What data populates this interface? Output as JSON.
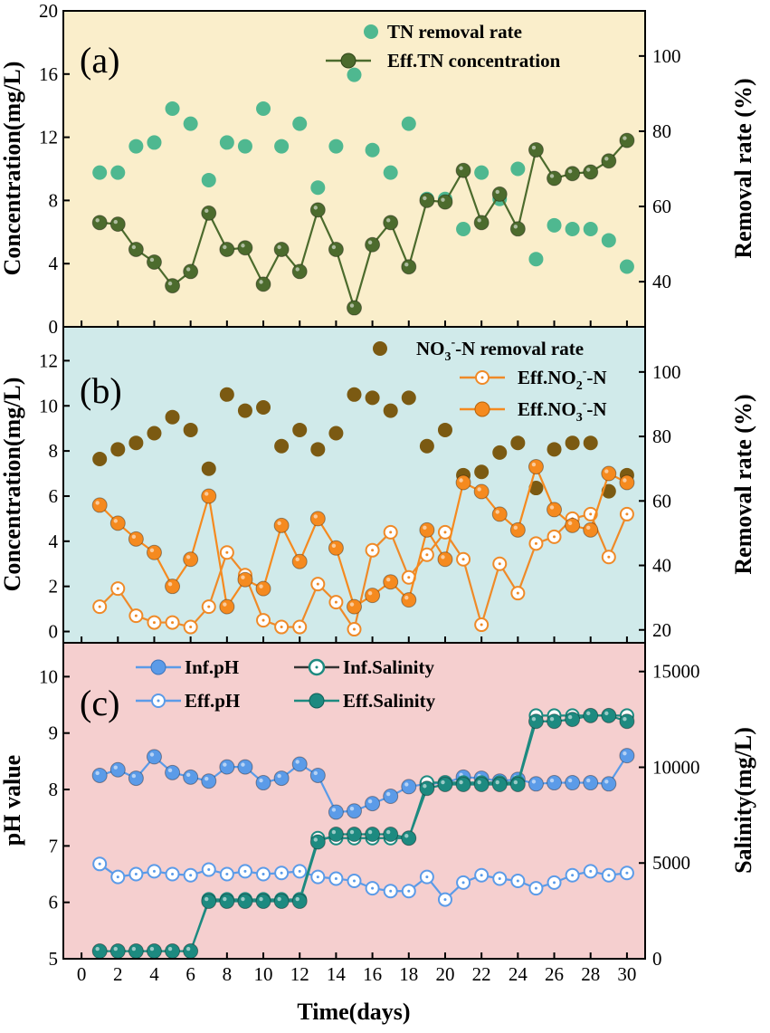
{
  "chart_data": [
    {
      "type": "line",
      "panel_label": "(a)",
      "bg": "#faeecb",
      "x": [
        1,
        2,
        3,
        4,
        5,
        6,
        7,
        8,
        9,
        10,
        11,
        12,
        13,
        14,
        15,
        16,
        17,
        18,
        19,
        20,
        21,
        22,
        23,
        24,
        25,
        26,
        27,
        28,
        29,
        30
      ],
      "xlim": [
        -1,
        31
      ],
      "xticks": [
        "0",
        "2",
        "4",
        "6",
        "8",
        "10",
        "12",
        "14",
        "16",
        "18",
        "20",
        "22",
        "24",
        "26",
        "28",
        "30"
      ],
      "left_axis": {
        "label": "Concentration(mg/L)",
        "ylim": [
          0,
          20
        ],
        "ticks": [
          "0",
          "4",
          "8",
          "12",
          "16",
          "20"
        ]
      },
      "right_axis": {
        "label": "Removal rate (%)",
        "ylim": [
          28,
          112
        ],
        "ticks": [
          "40",
          "60",
          "80",
          "100"
        ]
      },
      "series": [
        {
          "name": "TN removal rate",
          "axis": "right",
          "style": "scatter",
          "color": "#4fb890",
          "values": [
            69,
            69,
            76,
            77,
            86,
            82,
            67,
            77,
            76,
            86,
            76,
            82,
            65,
            76,
            95,
            75,
            69,
            82,
            62,
            62,
            54,
            69,
            62,
            70,
            46,
            55,
            54,
            54,
            51,
            44
          ]
        },
        {
          "name": "Eff.TN concentration",
          "axis": "left",
          "style": "line-marker",
          "color": "#4c6b2d",
          "values": [
            6.6,
            6.5,
            4.9,
            4.1,
            2.6,
            3.5,
            7.2,
            4.9,
            5.0,
            2.7,
            4.9,
            3.5,
            7.4,
            4.9,
            1.2,
            5.2,
            6.6,
            3.8,
            8.0,
            7.9,
            9.9,
            6.6,
            8.4,
            6.2,
            11.2,
            9.4,
            9.7,
            9.8,
            10.5,
            11.8
          ]
        }
      ]
    },
    {
      "type": "line",
      "panel_label": "(b)",
      "bg": "#d0eaea",
      "x": [
        1,
        2,
        3,
        4,
        5,
        6,
        7,
        8,
        9,
        10,
        11,
        12,
        13,
        14,
        15,
        16,
        17,
        18,
        19,
        20,
        21,
        22,
        23,
        24,
        25,
        26,
        27,
        28,
        29,
        30
      ],
      "xlim": [
        -1,
        31
      ],
      "left_axis": {
        "label": "Concentration(mg/L)",
        "ylim": [
          -0.5,
          13.5
        ],
        "ticks": [
          "0",
          "2",
          "4",
          "6",
          "8",
          "10",
          "12"
        ]
      },
      "right_axis": {
        "label": "Removal rate (%)",
        "ylim": [
          16,
          114
        ],
        "ticks": [
          "20",
          "40",
          "60",
          "80",
          "100"
        ]
      },
      "series": [
        {
          "name": "NO3--N removal rate",
          "axis": "right",
          "style": "scatter",
          "color": "#7b5a12",
          "values": [
            73,
            76,
            78,
            81,
            86,
            82,
            70,
            93,
            88,
            89,
            77,
            82,
            76,
            81,
            93,
            92,
            88,
            92,
            77,
            82,
            68,
            69,
            75,
            78,
            64,
            76,
            78,
            78,
            63,
            68
          ]
        },
        {
          "name": "Eff.NO2--N",
          "axis": "left",
          "style": "line-open",
          "color": "#ef8a28",
          "values": [
            1.1,
            1.9,
            0.7,
            0.4,
            0.4,
            0.2,
            1.1,
            3.5,
            2.5,
            0.5,
            0.2,
            0.2,
            2.1,
            1.3,
            0.1,
            3.6,
            4.4,
            2.4,
            3.4,
            4.4,
            3.2,
            0.3,
            3.0,
            1.7,
            3.9,
            4.2,
            5.0,
            5.2,
            3.3,
            5.2
          ]
        },
        {
          "name": "Eff.NO3--N",
          "axis": "left",
          "style": "line-marker",
          "color": "#f58a1f",
          "values": [
            5.6,
            4.8,
            4.1,
            3.5,
            2.0,
            3.2,
            6.0,
            1.1,
            2.3,
            1.9,
            4.7,
            3.1,
            5.0,
            3.7,
            1.1,
            1.6,
            2.2,
            1.4,
            4.5,
            3.2,
            6.6,
            6.2,
            5.2,
            4.5,
            7.3,
            5.4,
            4.7,
            4.5,
            7.0,
            6.6
          ]
        }
      ]
    },
    {
      "type": "line",
      "panel_label": "(c)",
      "bg": "#f5cfcf",
      "x": [
        1,
        2,
        3,
        4,
        5,
        6,
        7,
        8,
        9,
        10,
        11,
        12,
        13,
        14,
        15,
        16,
        17,
        18,
        19,
        20,
        21,
        22,
        23,
        24,
        25,
        26,
        27,
        28,
        29,
        30
      ],
      "xlim": [
        -1,
        31
      ],
      "xlabel": "Time(days)",
      "left_axis": {
        "label": "pH value",
        "ylim": [
          5,
          10.6
        ],
        "ticks": [
          "5",
          "6",
          "7",
          "8",
          "9",
          "10"
        ]
      },
      "right_axis": {
        "label": "Salinity(mg/L)",
        "ylim": [
          0,
          16500
        ],
        "ticks": [
          "0",
          "5000",
          "10000",
          "15000"
        ]
      },
      "series": [
        {
          "name": "Inf.pH",
          "axis": "left",
          "style": "line-marker",
          "color": "#5b9be8",
          "values": [
            8.25,
            8.35,
            8.2,
            8.58,
            8.3,
            8.22,
            8.15,
            8.4,
            8.4,
            8.12,
            8.2,
            8.45,
            8.25,
            7.6,
            7.62,
            7.75,
            7.88,
            8.05,
            8.1,
            8.12,
            8.22,
            8.2,
            8.15,
            8.18,
            8.1,
            8.12,
            8.12,
            8.12,
            8.1,
            8.6
          ]
        },
        {
          "name": "Eff.pH",
          "axis": "left",
          "style": "line-open",
          "color": "#5b9be8",
          "values": [
            6.68,
            6.45,
            6.5,
            6.55,
            6.5,
            6.48,
            6.58,
            6.5,
            6.55,
            6.5,
            6.52,
            6.55,
            6.45,
            6.42,
            6.38,
            6.25,
            6.2,
            6.2,
            6.45,
            6.05,
            6.35,
            6.48,
            6.42,
            6.38,
            6.25,
            6.35,
            6.48,
            6.55,
            6.48,
            6.52
          ]
        },
        {
          "name": "Inf.Salinity",
          "axis": "right",
          "style": "line-open",
          "color": "#1d8a80",
          "values": [
            400,
            400,
            400,
            400,
            400,
            400,
            3100,
            3100,
            3100,
            3100,
            3100,
            3100,
            6300,
            6300,
            6300,
            6300,
            6300,
            6300,
            9200,
            9200,
            9200,
            9200,
            9200,
            9200,
            12700,
            12700,
            12700,
            12700,
            12700,
            12700
          ]
        },
        {
          "name": "Eff.Salinity",
          "axis": "right",
          "style": "line-marker",
          "color": "#1d8a80",
          "values": [
            400,
            400,
            400,
            400,
            400,
            400,
            3000,
            3000,
            3000,
            3000,
            3000,
            3000,
            6100,
            6500,
            6500,
            6500,
            6500,
            6300,
            8900,
            9100,
            9100,
            9100,
            9100,
            9100,
            12400,
            12400,
            12500,
            12700,
            12700,
            12400
          ]
        }
      ]
    }
  ],
  "legends": {
    "a": [
      "TN removal rate",
      "Eff.TN concentration"
    ],
    "b": {
      "removal": {
        "base": "NO",
        "sub": "3",
        "sup": "-",
        "rest": "-N removal rate"
      },
      "no2": {
        "base": "Eff.NO",
        "sub": "2",
        "sup": "-",
        "rest": "-N"
      },
      "no3": {
        "base": "Eff.NO",
        "sub": "3",
        "sup": "-",
        "rest": "-N"
      }
    },
    "c": [
      "Inf.pH",
      "Inf.Salinity",
      "Eff.pH",
      "Eff.Salinity"
    ]
  }
}
